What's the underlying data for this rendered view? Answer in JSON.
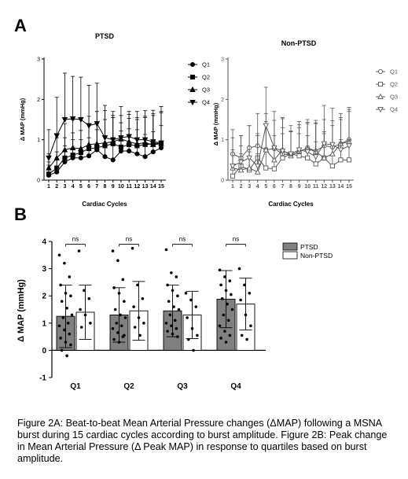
{
  "figure": {
    "panel_a_label": "A",
    "panel_b_label": "B",
    "caption": "Figure 2A: Beat-to-beat Mean Arterial Pressure changes (ΔMAP) following a MSNA burst during 15 cardiac cycles according to burst amplitude. Figure 2B: Peak change in Mean Arterial Pressure (Δ Peak MAP) in response to quartiles based on burst amplitude."
  },
  "chart_data": [
    {
      "type": "line",
      "title": "PTSD",
      "xlabel": "Cardiac Cycles",
      "ylabel": "Δ MAP (mmHg)",
      "ylim": [
        0,
        3
      ],
      "yticks": [
        0,
        1,
        2,
        3
      ],
      "x": [
        1,
        2,
        3,
        4,
        5,
        6,
        7,
        8,
        9,
        10,
        11,
        12,
        13,
        14,
        15
      ],
      "legend": "right",
      "color": "#000000",
      "series": [
        {
          "name": "Q1",
          "marker": "circle-filled",
          "values": [
            0.12,
            0.2,
            0.45,
            0.55,
            0.55,
            0.6,
            0.75,
            0.58,
            0.5,
            0.72,
            0.72,
            0.65,
            0.58,
            0.7,
            0.8
          ],
          "errors": [
            0.25,
            0.3,
            0.4,
            0.45,
            0.45,
            0.45,
            0.5,
            0.5,
            0.55,
            0.5,
            0.55,
            0.6,
            0.55,
            0.5,
            0.55
          ]
        },
        {
          "name": "Q2",
          "marker": "square-filled",
          "values": [
            0.15,
            0.3,
            0.55,
            0.62,
            0.68,
            0.78,
            0.8,
            0.85,
            0.9,
            0.82,
            0.88,
            0.85,
            0.88,
            0.9,
            0.92
          ],
          "errors": [
            0.3,
            0.4,
            0.5,
            0.55,
            0.55,
            0.6,
            0.6,
            0.65,
            0.65,
            0.6,
            0.65,
            0.65,
            0.7,
            0.7,
            0.75
          ]
        },
        {
          "name": "Q3",
          "marker": "triangle-up-filled",
          "values": [
            0.3,
            0.55,
            0.75,
            0.8,
            0.78,
            0.88,
            0.9,
            0.92,
            0.95,
            1.02,
            0.95,
            0.9,
            0.92,
            0.88,
            0.9
          ],
          "errors": [
            0.35,
            0.5,
            0.65,
            0.7,
            0.75,
            0.7,
            0.8,
            0.8,
            0.75,
            0.8,
            0.75,
            0.8,
            0.8,
            0.85,
            0.8
          ]
        },
        {
          "name": "Q4",
          "marker": "triangle-down-filled",
          "values": [
            0.55,
            1.1,
            1.5,
            1.52,
            1.5,
            1.35,
            1.4,
            1.05,
            1.0,
            1.05,
            1.08,
            1.0,
            1.0,
            0.95,
            0.92
          ],
          "errors": [
            0.7,
            0.95,
            1.15,
            1.05,
            1.05,
            1.0,
            1.0,
            0.8,
            0.6,
            0.55,
            0.55,
            0.55,
            0.55,
            0.7,
            0.9
          ]
        }
      ]
    },
    {
      "type": "line",
      "title": "Non-PTSD",
      "xlabel": "Cardiac Cycles",
      "ylabel": "Δ MAP (mmHg)",
      "ylim": [
        0,
        3
      ],
      "yticks": [
        0,
        1,
        2,
        3
      ],
      "x": [
        1,
        2,
        3,
        4,
        5,
        6,
        7,
        8,
        9,
        10,
        11,
        12,
        13,
        14,
        15
      ],
      "legend": "right",
      "color": "#555555",
      "series": [
        {
          "name": "Q1",
          "marker": "circle-open",
          "values": [
            0.65,
            0.55,
            0.8,
            0.85,
            0.75,
            0.78,
            0.65,
            0.62,
            0.7,
            0.8,
            0.72,
            0.85,
            0.82,
            0.9,
            1.0
          ],
          "errors": [
            0.6,
            0.55,
            0.55,
            0.8,
            0.7,
            0.7,
            0.65,
            0.6,
            0.6,
            0.6,
            0.7,
            0.65,
            0.65,
            0.6,
            0.7
          ]
        },
        {
          "name": "Q2",
          "marker": "square-open",
          "values": [
            0.1,
            0.35,
            0.25,
            0.55,
            0.3,
            0.28,
            0.55,
            0.65,
            0.6,
            0.55,
            0.4,
            0.55,
            0.35,
            0.5,
            0.5
          ],
          "errors": [
            0.3,
            0.5,
            0.45,
            0.55,
            0.5,
            0.5,
            0.6,
            0.55,
            0.55,
            0.55,
            0.55,
            0.6,
            0.55,
            0.5,
            0.5
          ]
        },
        {
          "name": "Q3",
          "marker": "triangle-up-open",
          "values": [
            0.3,
            0.25,
            0.3,
            0.2,
            0.75,
            0.5,
            0.75,
            0.6,
            0.72,
            0.78,
            0.7,
            0.55,
            0.65,
            0.9,
            0.95
          ],
          "errors": [
            0.45,
            0.4,
            0.4,
            0.45,
            0.9,
            0.6,
            0.8,
            0.6,
            0.65,
            0.65,
            0.7,
            0.65,
            0.7,
            0.65,
            0.8
          ]
        },
        {
          "name": "Q4",
          "marker": "triangle-down-open",
          "values": [
            0.35,
            0.45,
            0.55,
            0.35,
            1.35,
            0.8,
            0.72,
            0.65,
            0.75,
            0.7,
            0.58,
            0.9,
            0.88,
            0.75,
            0.85
          ],
          "errors": [
            0.7,
            0.65,
            0.8,
            0.8,
            0.95,
            0.9,
            0.8,
            0.7,
            0.7,
            0.8,
            0.9,
            0.95,
            0.9,
            0.9,
            0.95
          ]
        }
      ]
    },
    {
      "type": "bar",
      "ylabel": "Δ MAP (mmHg)",
      "ylim": [
        -1,
        4
      ],
      "yticks": [
        -1,
        0,
        1,
        2,
        3,
        4
      ],
      "categories": [
        "Q1",
        "Q2",
        "Q3",
        "Q4"
      ],
      "legend": "top-right",
      "significance": [
        "ns",
        "ns",
        "ns",
        "ns"
      ],
      "series": [
        {
          "name": "PTSD",
          "color": "#808080",
          "values": [
            1.25,
            1.3,
            1.45,
            1.88
          ],
          "errors": [
            1.15,
            1.0,
            0.95,
            1.05
          ],
          "points": [
            [
              3.5,
              3.2,
              2.7,
              2.4,
              2.1,
              2.0,
              1.8,
              1.55,
              1.3,
              1.2,
              1.0,
              0.9,
              0.75,
              0.6,
              0.45,
              0.3,
              0.2,
              0.0,
              -0.2
            ],
            [
              3.65,
              3.3,
              2.6,
              2.3,
              2.1,
              1.8,
              1.5,
              1.3,
              1.2,
              1.0,
              0.9,
              0.8,
              0.65,
              0.5,
              0.4,
              0.3,
              0.55
            ],
            [
              3.7,
              2.85,
              2.7,
              2.4,
              2.2,
              2.0,
              1.8,
              1.6,
              1.5,
              1.3,
              1.1,
              1.0,
              0.9,
              0.8,
              0.7,
              0.6,
              0.5
            ],
            [
              2.95,
              2.7,
              2.55,
              2.4,
              2.2,
              2.05,
              1.9,
              1.7,
              1.5,
              1.3,
              1.1,
              0.9,
              0.7,
              0.55,
              0.45,
              0.3
            ]
          ]
        },
        {
          "name": "Non-PTSD",
          "color": "#ffffff",
          "values": [
            1.4,
            1.45,
            1.3,
            1.7
          ],
          "errors": [
            1.0,
            1.08,
            0.87,
            0.95
          ],
          "points": [
            [
              3.65,
              2.2,
              1.9,
              1.5,
              1.3,
              1.0,
              0.85
            ],
            [
              3.75,
              2.4,
              1.9,
              1.6,
              1.2,
              1.0,
              0.85,
              0.55
            ],
            [
              2.1,
              1.85,
              1.6,
              1.2,
              0.8,
              0.55,
              0.4,
              0.0
            ],
            [
              3.0,
              2.4,
              2.1,
              1.85,
              1.3,
              0.9,
              0.55,
              0.4
            ]
          ]
        }
      ]
    }
  ]
}
